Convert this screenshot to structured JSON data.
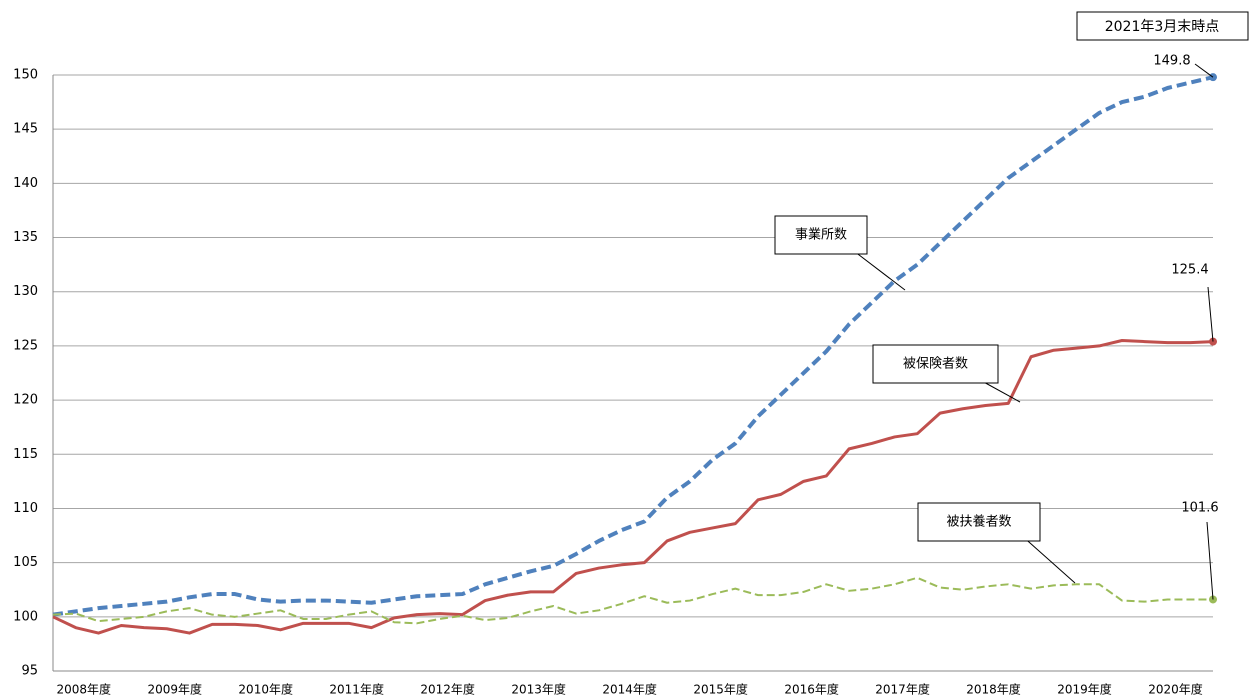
{
  "chart_data": {
    "type": "line",
    "annotation": "2021年3月末時点",
    "categories": [
      null,
      "2008年度",
      null,
      null,
      null,
      "2009年度",
      null,
      null,
      null,
      "2010年度",
      null,
      null,
      null,
      "2011年度",
      null,
      null,
      null,
      "2012年度",
      null,
      null,
      null,
      "2013年度",
      null,
      null,
      null,
      "2014年度",
      null,
      null,
      null,
      "2015年度",
      null,
      null,
      null,
      "2016年度",
      null,
      null,
      null,
      "2017年度",
      null,
      null,
      null,
      "2018年度",
      null,
      null,
      null,
      "2019年度",
      null,
      null,
      null,
      "2020年度",
      null,
      null
    ],
    "series": [
      {
        "name": "事業所数",
        "color": "#4f81bd",
        "values": [
          100.2,
          100.5,
          100.8,
          101.0,
          101.2,
          101.4,
          101.8,
          102.1,
          102.1,
          101.6,
          101.4,
          101.5,
          101.5,
          101.4,
          101.3,
          101.6,
          101.9,
          102.0,
          102.1,
          103.0,
          103.6,
          104.2,
          104.7,
          105.8,
          107.0,
          108.0,
          108.8,
          111.0,
          112.5,
          114.5,
          116.0,
          118.5,
          120.5,
          122.5,
          124.5,
          127.0,
          129.0,
          131.0,
          132.5,
          134.5,
          136.5,
          138.5,
          140.5,
          142.0,
          143.5,
          145.0,
          146.5,
          147.5,
          148.0,
          148.8,
          149.3,
          149.8
        ]
      },
      {
        "name": "被保険者数",
        "color": "#c0504d",
        "values": [
          100.0,
          99.0,
          98.5,
          99.2,
          99.0,
          98.9,
          98.5,
          99.3,
          99.3,
          99.2,
          98.8,
          99.4,
          99.4,
          99.4,
          99.0,
          99.9,
          100.2,
          100.3,
          100.2,
          101.5,
          102.0,
          102.3,
          102.3,
          104.0,
          104.5,
          104.8,
          105.0,
          107.0,
          107.8,
          108.2,
          108.6,
          110.8,
          111.3,
          112.5,
          113.0,
          115.5,
          116.0,
          116.6,
          116.9,
          118.8,
          119.2,
          119.5,
          119.7,
          124.0,
          124.6,
          124.8,
          125.0,
          125.5,
          125.4,
          125.3,
          125.3,
          125.4
        ]
      },
      {
        "name": "被扶養者数",
        "color": "#9bbb59",
        "values": [
          100.2,
          100.3,
          99.6,
          99.8,
          100.0,
          100.5,
          100.8,
          100.2,
          100.0,
          100.3,
          100.6,
          99.8,
          99.8,
          100.2,
          100.5,
          99.5,
          99.4,
          99.8,
          100.1,
          99.7,
          99.9,
          100.5,
          101.0,
          100.3,
          100.6,
          101.2,
          101.9,
          101.3,
          101.5,
          102.1,
          102.6,
          102.0,
          102.0,
          102.3,
          103.0,
          102.4,
          102.6,
          103.0,
          103.6,
          102.7,
          102.5,
          102.8,
          103.0,
          102.6,
          102.9,
          103.0,
          103.0,
          101.5,
          101.4,
          101.6,
          101.6,
          101.6
        ]
      }
    ],
    "ylim": [
      95,
      150
    ],
    "yticks": [
      95,
      100,
      105,
      110,
      115,
      120,
      125,
      130,
      135,
      140,
      145,
      150
    ],
    "grid": true
  }
}
